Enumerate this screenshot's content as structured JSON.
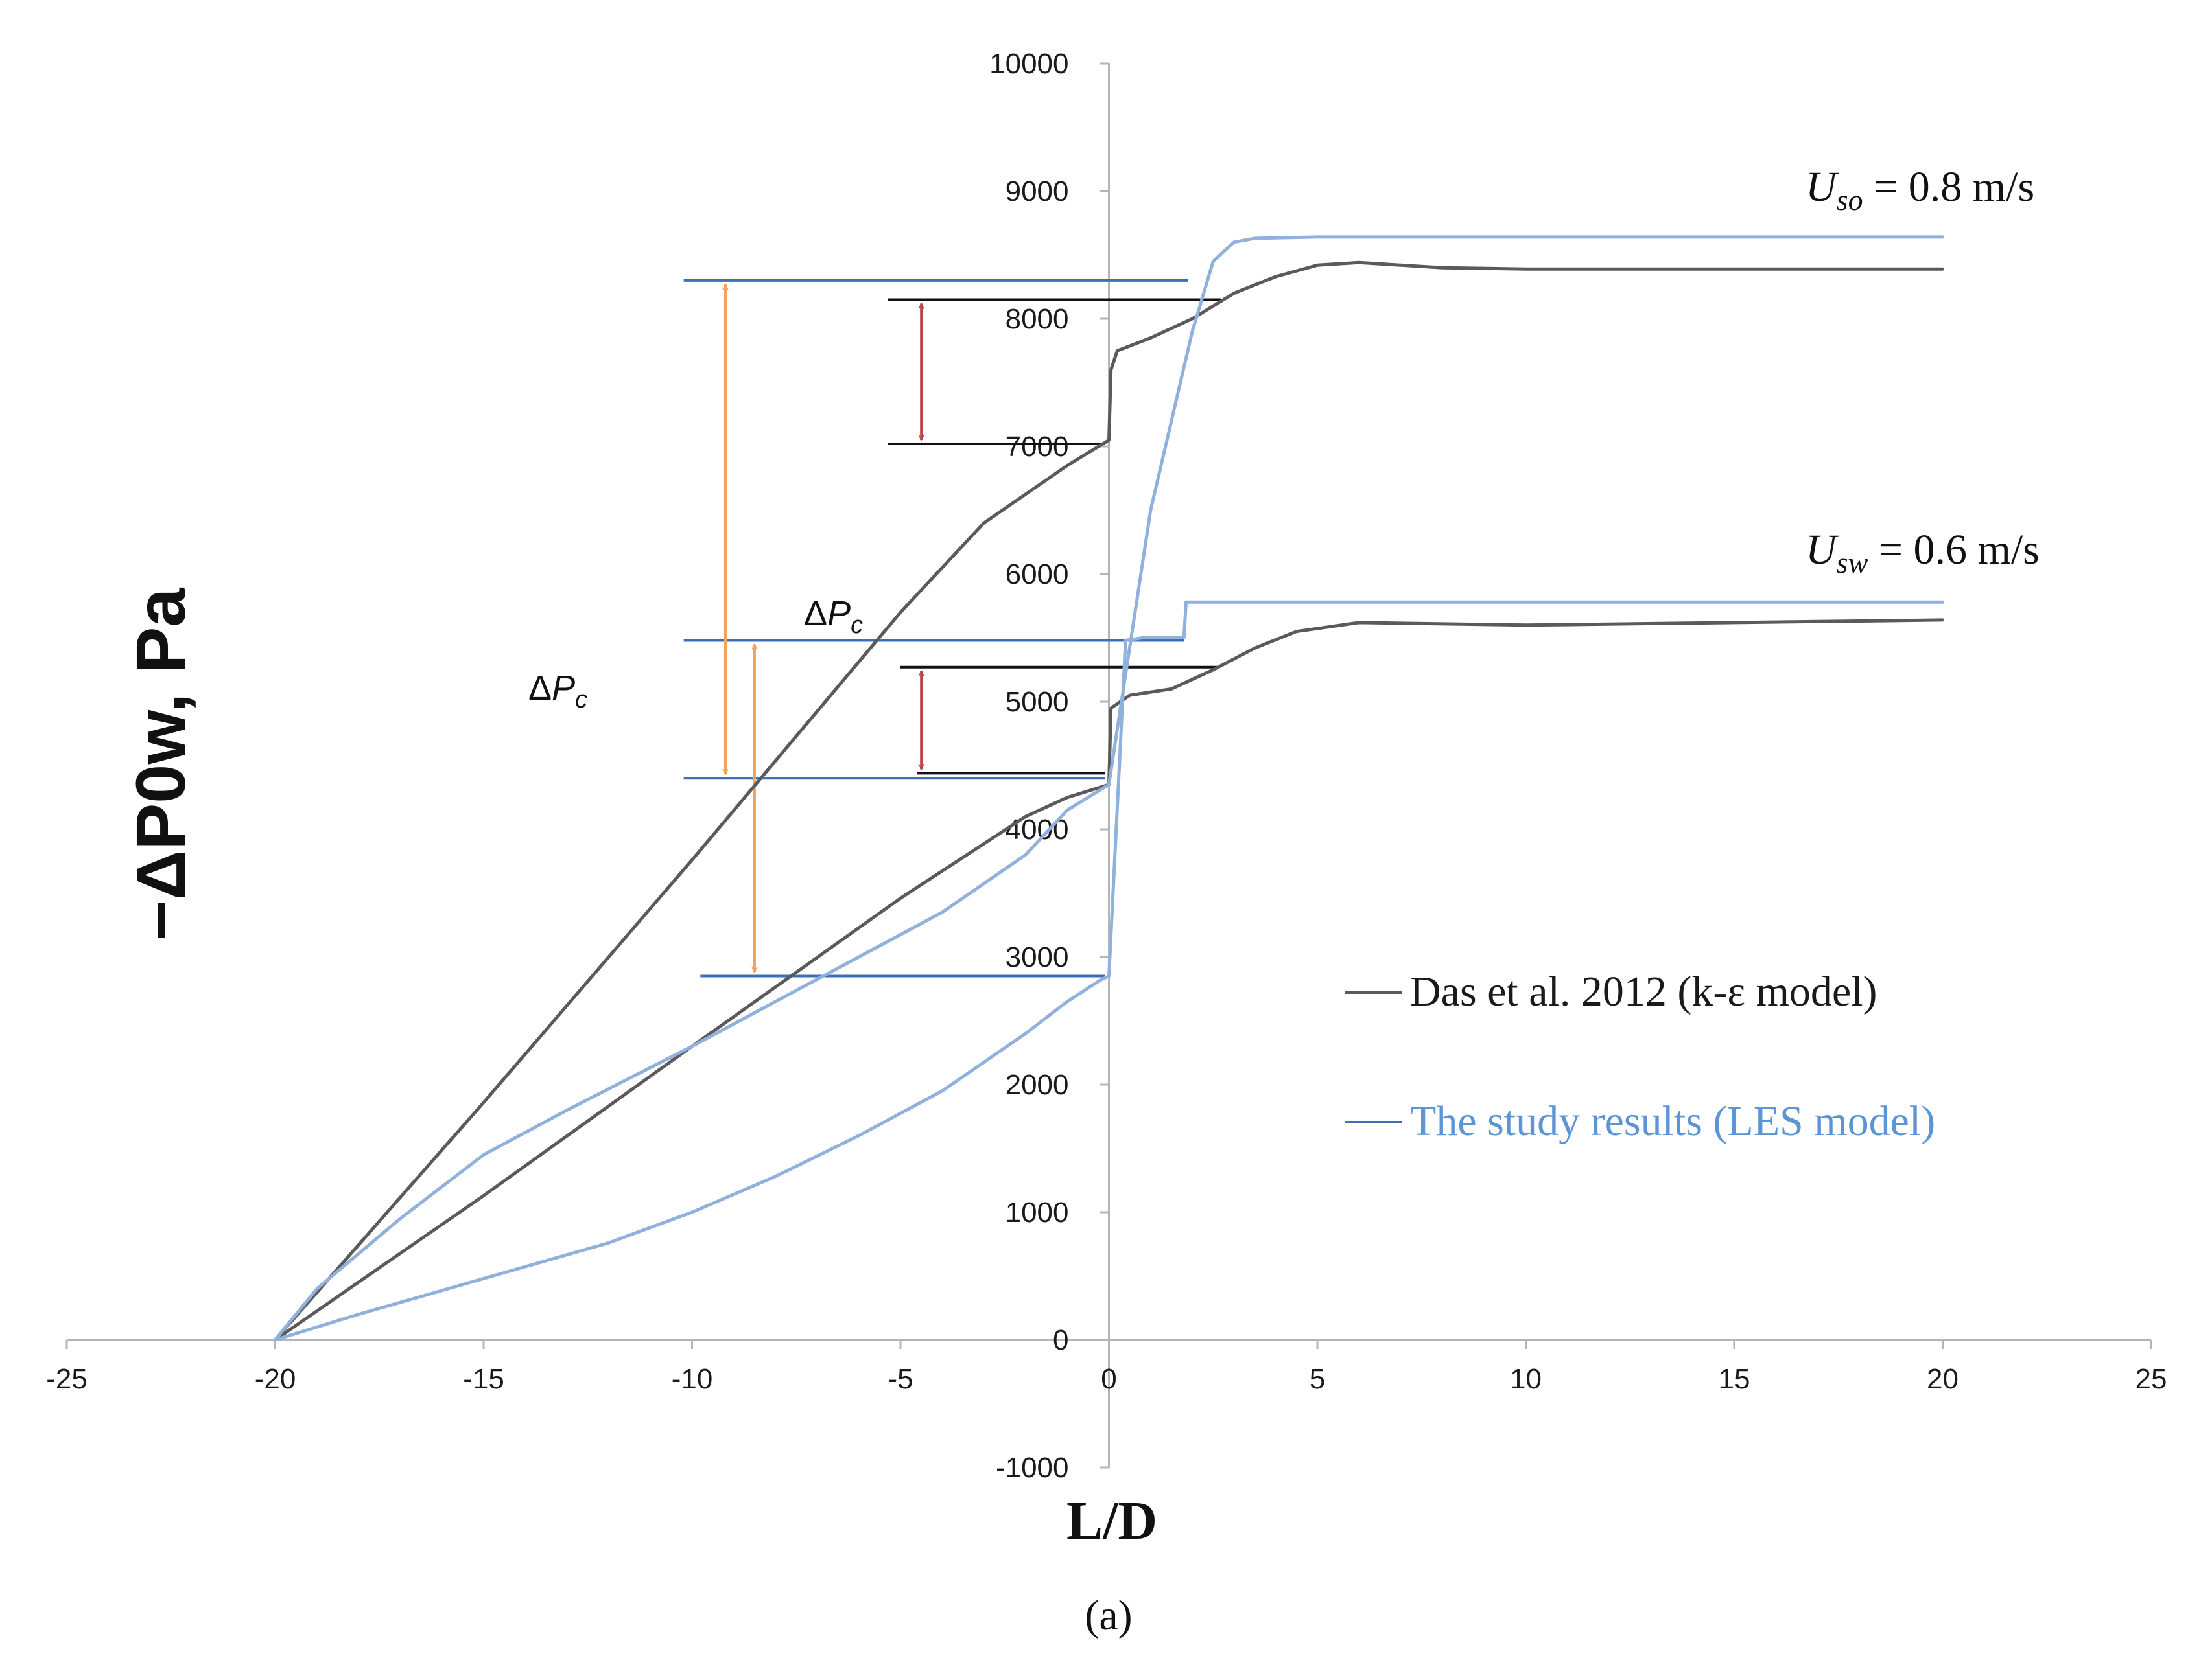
{
  "chart_data": {
    "type": "line",
    "caption": "(a)",
    "xlabel": "L/D",
    "ylabel": "−ΔP0w, Pa",
    "xlim": [
      -25,
      25
    ],
    "ylim": [
      -1000,
      10000
    ],
    "x_ticks": [
      -25,
      -20,
      -15,
      -10,
      -5,
      0,
      5,
      10,
      15,
      20,
      25
    ],
    "y_ticks": [
      -1000,
      0,
      1000,
      2000,
      3000,
      4000,
      5000,
      6000,
      7000,
      8000,
      9000,
      10000
    ],
    "colors": {
      "das": "#5a5a5a",
      "les": "#8fb1dc",
      "ref_blue": "#3f6fb8",
      "ref_black": "#111111",
      "orange": "#f5a25d",
      "red": "#b8474a"
    },
    "legend": [
      {
        "label": "Das et al. 2012 (k-ε model)",
        "color": "#5a5a5a"
      },
      {
        "label": "The study results (LES model)",
        "color": "#8fb1dc"
      }
    ],
    "annotations": {
      "uso": {
        "var": "U",
        "sub": "so",
        "rest": " = 0.8 m/s"
      },
      "usw": {
        "var": "U",
        "sub": "sw",
        "rest": " = 0.6 m/s"
      },
      "dpc_left": {
        "delta": "Δ",
        "var": "P",
        "sub": "c"
      },
      "dpc_mid": {
        "delta": "Δ",
        "var": "P",
        "sub": "c"
      }
    },
    "series": [
      {
        "name": "Das et al. 2012 (k-ε model)",
        "color": "#5a5a5a",
        "x": [
          -20,
          -15,
          -10,
          -5,
          -3,
          -1,
          0,
          0.05,
          0.2,
          1,
          2,
          3,
          4,
          5,
          6,
          8,
          10,
          15,
          20
        ],
        "y": [
          0,
          1860,
          3760,
          5700,
          6400,
          6850,
          7050,
          7600,
          7750,
          7850,
          8000,
          8200,
          8330,
          8420,
          8440,
          8400,
          8390,
          8390,
          8390
        ]
      },
      {
        "name": "Das et al. 2012 (k-ε model)",
        "color": "#5a5a5a",
        "x": [
          -20,
          -15,
          -10,
          -5,
          -2,
          -1,
          0,
          0.05,
          0.5,
          1.5,
          2.5,
          3.5,
          4.5,
          6,
          10,
          15,
          20
        ],
        "y": [
          0,
          1130,
          2300,
          3460,
          4100,
          4250,
          4350,
          4950,
          5050,
          5100,
          5250,
          5420,
          5550,
          5620,
          5600,
          5620,
          5640
        ]
      },
      {
        "name": "The study results (LES model)",
        "color": "#8fb1dc",
        "x": [
          -20,
          -19,
          -17,
          -15,
          -13,
          -10,
          -8,
          -6,
          -4,
          -2,
          -1,
          0,
          0.3,
          1,
          2,
          2.5,
          3,
          3.5,
          5,
          10,
          15,
          20
        ],
        "y": [
          0,
          400,
          950,
          1450,
          1800,
          2300,
          2650,
          3000,
          3350,
          3800,
          4150,
          4350,
          5000,
          6500,
          7900,
          8450,
          8600,
          8630,
          8640,
          8640,
          8640,
          8640
        ]
      },
      {
        "name": "The study results (LES model)",
        "color": "#8fb1dc",
        "x": [
          -20,
          -18,
          -15,
          -12,
          -10,
          -8,
          -6,
          -4,
          -2,
          -1,
          -0.2,
          0,
          0.4,
          0.6,
          0.8,
          1,
          1.8,
          1.85,
          3,
          5,
          10,
          15,
          20
        ],
        "y": [
          0,
          200,
          480,
          760,
          1000,
          1280,
          1600,
          1950,
          2400,
          2650,
          2820,
          2850,
          5480,
          5490,
          5500,
          5500,
          5500,
          5780,
          5780,
          5780,
          5780,
          5780,
          5780
        ]
      }
    ],
    "reference_lines": [
      {
        "color": "#3f6fb8",
        "x": [
          -10.2,
          1.9
        ],
        "y": 8300
      },
      {
        "color": "#3f6fb8",
        "x": [
          -10.2,
          1.8
        ],
        "y": 5480
      },
      {
        "color": "#3f6fb8",
        "x": [
          -10.2,
          -0.1
        ],
        "y": 4400
      },
      {
        "color": "#3f6fb8",
        "x": [
          -9.8,
          -0.1
        ],
        "y": 2850
      },
      {
        "color": "#111111",
        "x": [
          -5.3,
          2.7
        ],
        "y": 8150
      },
      {
        "color": "#111111",
        "x": [
          -5.3,
          -0.1
        ],
        "y": 7020
      },
      {
        "color": "#111111",
        "x": [
          -5.0,
          2.6
        ],
        "y": 5270
      },
      {
        "color": "#111111",
        "x": [
          -4.6,
          -0.1
        ],
        "y": 4440
      }
    ],
    "arrows": [
      {
        "color": "#f5a25d",
        "x": -9.2,
        "y": [
          4400,
          8300
        ]
      },
      {
        "color": "#f5a25d",
        "x": -8.5,
        "y": [
          2850,
          5480
        ]
      },
      {
        "color": "#b8474a",
        "x": -4.5,
        "y": [
          7020,
          8150
        ]
      },
      {
        "color": "#b8474a",
        "x": -4.5,
        "y": [
          4440,
          5270
        ]
      }
    ]
  }
}
